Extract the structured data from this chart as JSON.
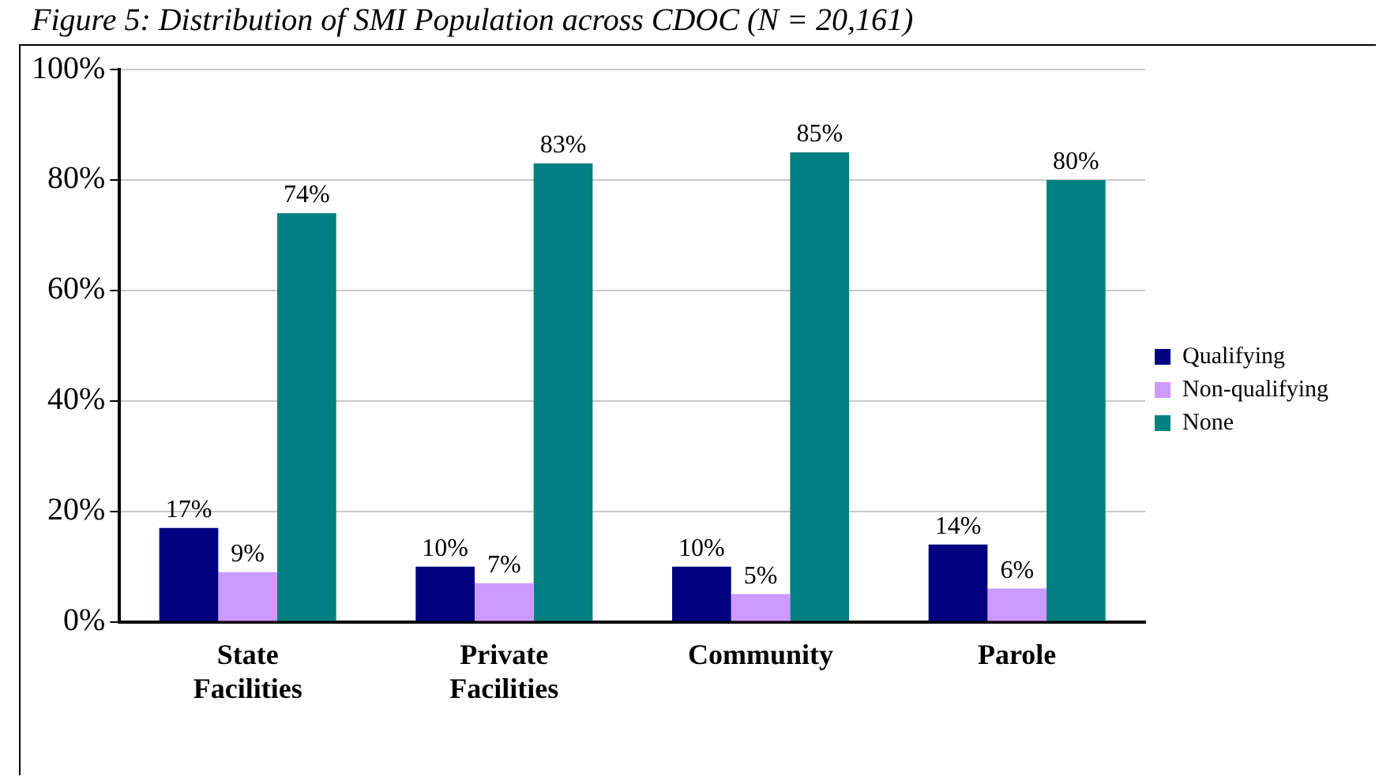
{
  "chart_data": {
    "type": "bar",
    "title": "Figure 5: Distribution of SMI Population across CDOC (N = 20,161)",
    "categories": [
      "State Facilities",
      "Private Facilities",
      "Community",
      "Parole"
    ],
    "series": [
      {
        "name": "Qualifying",
        "color": "#000080",
        "values": [
          17,
          10,
          10,
          14
        ],
        "value_labels": [
          "17%",
          "10%",
          "10%",
          "14%"
        ]
      },
      {
        "name": "Non-qualifying",
        "color": "#cc99ff",
        "values": [
          9,
          7,
          5,
          6
        ],
        "value_labels": [
          "9%",
          "7%",
          "5%",
          "6%"
        ]
      },
      {
        "name": "None",
        "color": "#008080",
        "values": [
          74,
          83,
          85,
          80
        ],
        "value_labels": [
          "74%",
          "83%",
          "85%",
          "80%"
        ]
      }
    ],
    "ylim": [
      0,
      100
    ],
    "yticks": [
      {
        "value": 0,
        "label": "0%"
      },
      {
        "value": 20,
        "label": "20%"
      },
      {
        "value": 40,
        "label": "40%"
      },
      {
        "value": 60,
        "label": "60%"
      },
      {
        "value": 80,
        "label": "80%"
      },
      {
        "value": 100,
        "label": "100%"
      }
    ],
    "grid": "y",
    "legend": "right"
  }
}
